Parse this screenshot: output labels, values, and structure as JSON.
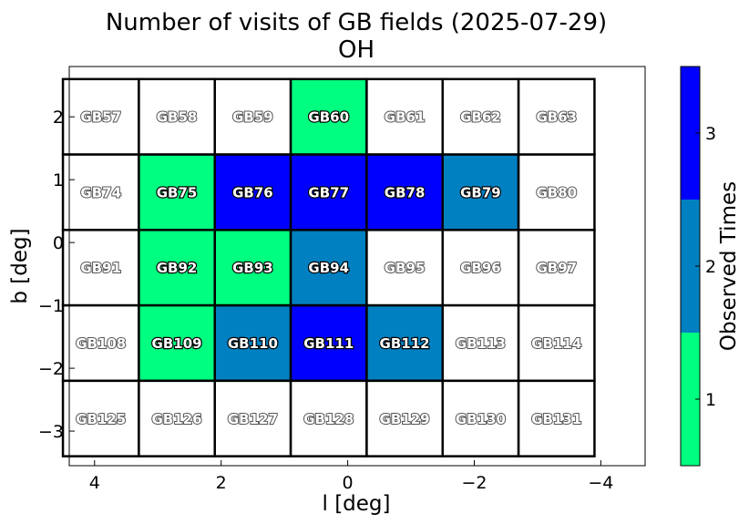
{
  "chart_data": {
    "type": "heatmap",
    "title": "Number of visits of GB fields (2025-07-29)",
    "subtitle": "OH",
    "xlabel": "l [deg]",
    "ylabel": "b [deg]",
    "xlim": [
      4.4,
      -4.7
    ],
    "ylim": [
      -3.55,
      2.8
    ],
    "x_ticks": [
      4,
      2,
      0,
      -2,
      -4
    ],
    "x_tick_labels": [
      "4",
      "2",
      "0",
      "−2",
      "−4"
    ],
    "y_ticks": [
      2,
      1,
      0,
      -1,
      -2,
      -3
    ],
    "y_tick_labels": [
      "2",
      "1",
      "0",
      "−1",
      "−2",
      "−3"
    ],
    "cell_width_deg": 1.2,
    "cell_height_deg": 1.2,
    "column_centers_l": [
      3.9,
      2.7,
      1.5,
      0.3,
      -0.9,
      -2.1,
      -3.3
    ],
    "row_centers_b": [
      2.0,
      0.8,
      -0.4,
      -1.6,
      -2.8
    ],
    "fields": [
      [
        "GB57",
        "GB58",
        "GB59",
        "GB60",
        "GB61",
        "GB62",
        "GB63"
      ],
      [
        "GB74",
        "GB75",
        "GB76",
        "GB77",
        "GB78",
        "GB79",
        "GB80"
      ],
      [
        "GB91",
        "GB92",
        "GB93",
        "GB94",
        "GB95",
        "GB96",
        "GB97"
      ],
      [
        "GB108",
        "GB109",
        "GB110",
        "GB111",
        "GB112",
        "GB113",
        "GB114"
      ],
      [
        "GB125",
        "GB126",
        "GB127",
        "GB128",
        "GB129",
        "GB130",
        "GB131"
      ]
    ],
    "visits": [
      [
        0,
        0,
        0,
        1,
        0,
        0,
        0
      ],
      [
        0,
        1,
        3,
        3,
        3,
        2,
        0
      ],
      [
        0,
        1,
        1,
        2,
        0,
        0,
        0
      ],
      [
        0,
        1,
        2,
        3,
        2,
        0,
        0
      ],
      [
        0,
        0,
        0,
        0,
        0,
        0,
        0
      ]
    ],
    "colorbar": {
      "label": "Observed Times",
      "range": [
        0.5,
        3.5
      ],
      "ticks": [
        1,
        2,
        3
      ],
      "tick_labels": [
        "1",
        "2",
        "3"
      ],
      "colors": {
        "1": "#00ff80",
        "2": "#0080c0",
        "3": "#0000ff"
      },
      "placement": "right"
    },
    "grid": false
  }
}
